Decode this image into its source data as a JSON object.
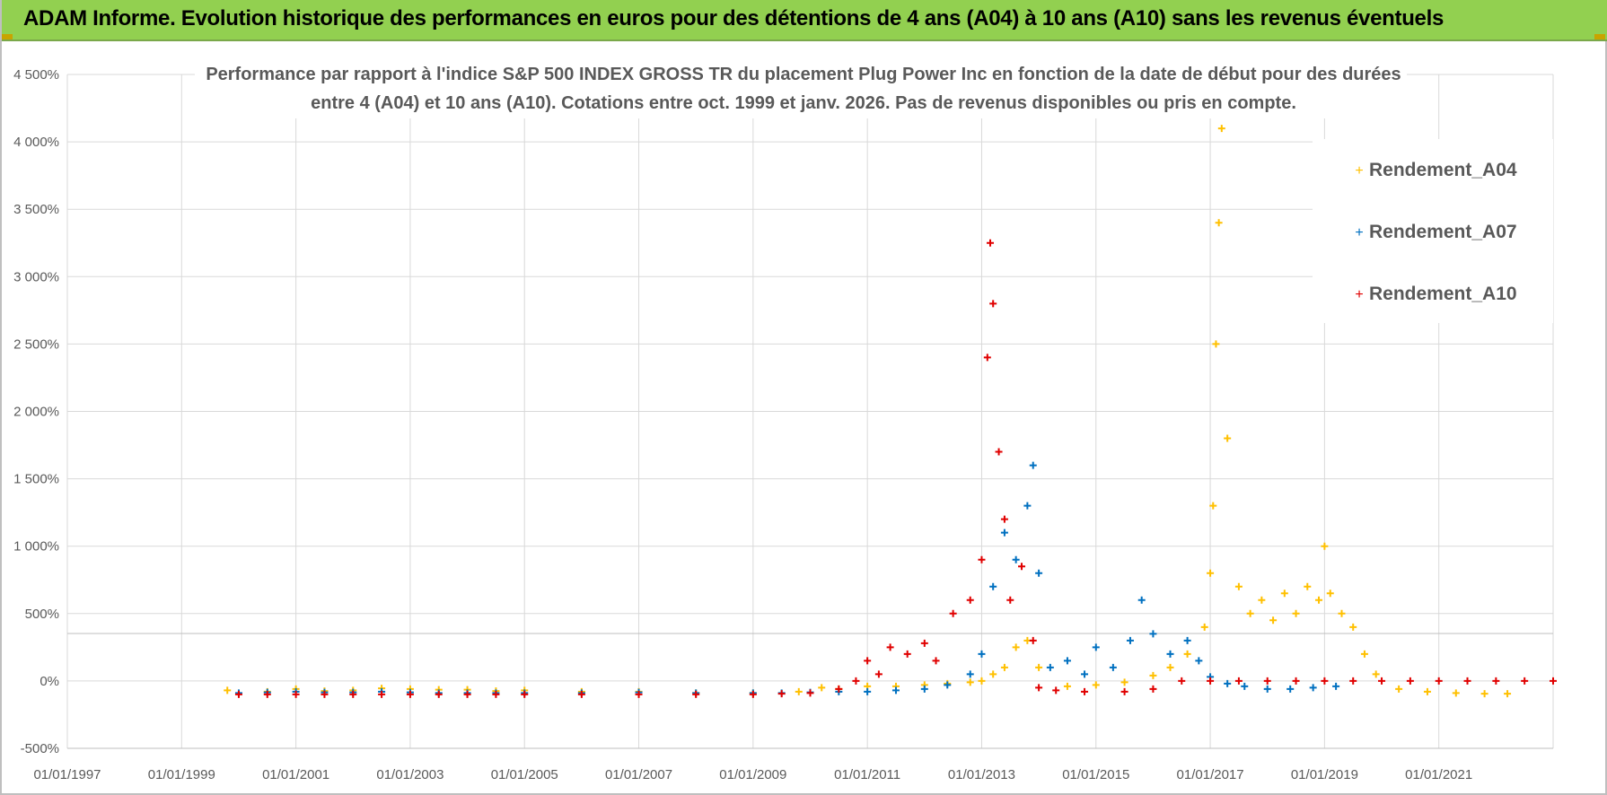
{
  "banner": {
    "title": "ADAM Informe. Evolution historique des performances en euros pour des détentions de 4 ans (A04) à 10 ans (A10) sans les revenus éventuels"
  },
  "colors": {
    "banner_bg": "#92d050",
    "A04": "#ffc000",
    "A07": "#0070c0",
    "A10": "#e00000",
    "grid": "#d9d9d9",
    "text": "#595959"
  },
  "chart_data": {
    "type": "scatter",
    "title_line1": "Performance par rapport à l'indice S&P 500 INDEX GROSS TR  du placement Plug Power Inc en fonction de la date de début pour des durées",
    "title_line2": "entre 4 (A04) et 10 ans (A10). Cotations entre oct. 1999 et janv. 2026. Pas de revenus disponibles ou pris en compte.",
    "xlabel": "",
    "ylabel": "",
    "xlim": [
      1997.0,
      2023.0
    ],
    "ylim": [
      -500,
      4500
    ],
    "y_ticks": [
      -500,
      0,
      500,
      1000,
      1500,
      2000,
      2500,
      3000,
      3500,
      4000,
      4500
    ],
    "y_tick_labels": [
      "-500%",
      "0%",
      "500%",
      "1 000%",
      "1 500%",
      "2 000%",
      "2 500%",
      "3 000%",
      "3 500%",
      "4 000%",
      "4 500%"
    ],
    "x_ticks": [
      1997,
      1999,
      2001,
      2003,
      2005,
      2007,
      2009,
      2011,
      2013,
      2015,
      2017,
      2019,
      2021
    ],
    "x_tick_labels": [
      "01/01/1997",
      "01/01/1999",
      "01/01/2001",
      "01/01/2003",
      "01/01/2005",
      "01/01/2007",
      "01/01/2009",
      "01/01/2011",
      "01/01/2013",
      "01/01/2015",
      "01/01/2017",
      "01/01/2019",
      "01/01/2021"
    ],
    "legend_position": "top-right",
    "series": [
      {
        "name": "Rendement_A04",
        "x": [
          1999.8,
          2000.5,
          2001.0,
          2001.5,
          2002.0,
          2002.5,
          2003.0,
          2003.5,
          2004.0,
          2004.5,
          2005.0,
          2006.0,
          2007.0,
          2008.0,
          2009.0,
          2009.8,
          2010.2,
          2010.5,
          2011.0,
          2011.5,
          2012.0,
          2012.4,
          2012.8,
          2013.0,
          2013.2,
          2013.4,
          2013.6,
          2013.8,
          2014.0,
          2014.5,
          2015.0,
          2015.5,
          2016.0,
          2016.3,
          2016.6,
          2016.9,
          2017.0,
          2017.05,
          2017.1,
          2017.15,
          2017.2,
          2017.3,
          2017.5,
          2017.7,
          2017.9,
          2018.1,
          2018.3,
          2018.5,
          2018.7,
          2018.9,
          2019.0,
          2019.1,
          2019.3,
          2019.5,
          2019.7,
          2019.9,
          2020.3,
          2020.8,
          2021.3,
          2021.8,
          2022.2
        ],
        "y": [
          -70,
          -80,
          -60,
          -75,
          -70,
          -55,
          -60,
          -65,
          -65,
          -75,
          -70,
          -80,
          -80,
          -90,
          -90,
          -80,
          -50,
          -60,
          -40,
          -40,
          -30,
          -20,
          -10,
          0,
          50,
          100,
          250,
          300,
          100,
          -40,
          -30,
          -10,
          40,
          100,
          200,
          400,
          800,
          1300,
          2500,
          3400,
          4100,
          1800,
          700,
          500,
          600,
          450,
          650,
          500,
          700,
          600,
          1000,
          650,
          500,
          400,
          200,
          50,
          -60,
          -80,
          -90,
          -95,
          -95
        ]
      },
      {
        "name": "Rendement_A07",
        "x": [
          2000.0,
          2000.5,
          2001.0,
          2001.5,
          2002.0,
          2002.5,
          2003.0,
          2003.5,
          2004.0,
          2004.5,
          2005.0,
          2006.0,
          2007.0,
          2008.0,
          2009.0,
          2009.5,
          2010.0,
          2010.5,
          2011.0,
          2011.5,
          2012.0,
          2012.4,
          2012.8,
          2013.0,
          2013.2,
          2013.4,
          2013.6,
          2013.8,
          2013.9,
          2014.0,
          2014.2,
          2014.5,
          2014.8,
          2015.0,
          2015.3,
          2015.6,
          2015.8,
          2016.0,
          2016.3,
          2016.6,
          2016.8,
          2017.0,
          2017.3,
          2017.6,
          2018.0,
          2018.4,
          2018.8,
          2019.2
        ],
        "y": [
          -90,
          -85,
          -80,
          -85,
          -85,
          -80,
          -85,
          -90,
          -90,
          -90,
          -90,
          -90,
          -85,
          -90,
          -90,
          -90,
          -85,
          -80,
          -80,
          -70,
          -60,
          -30,
          50,
          200,
          700,
          1100,
          900,
          1300,
          1600,
          800,
          100,
          150,
          50,
          250,
          100,
          300,
          600,
          350,
          200,
          300,
          150,
          30,
          -20,
          -40,
          -60,
          -60,
          -50,
          -40
        ]
      },
      {
        "name": "Rendement_A10",
        "x": [
          2000.0,
          2000.5,
          2001.0,
          2001.5,
          2002.0,
          2002.5,
          2003.0,
          2003.5,
          2004.0,
          2004.5,
          2005.0,
          2006.0,
          2007.0,
          2008.0,
          2009.0,
          2009.5,
          2010.0,
          2010.5,
          2010.8,
          2011.0,
          2011.2,
          2011.4,
          2011.7,
          2012.0,
          2012.2,
          2012.5,
          2012.8,
          2013.0,
          2013.1,
          2013.15,
          2013.2,
          2013.3,
          2013.4,
          2013.5,
          2013.7,
          2013.9,
          2014.0,
          2014.3,
          2014.8,
          2015.5,
          2016.0,
          2016.5,
          2017.0,
          2017.5,
          2018.0,
          2018.5,
          2019.0,
          2019.5,
          2020.0,
          2020.5,
          2021.0,
          2021.5,
          2022.0,
          2022.5,
          2023.0
        ],
        "y": [
          -100,
          -100,
          -100,
          -100,
          -100,
          -100,
          -100,
          -100,
          -100,
          -100,
          -100,
          -100,
          -100,
          -100,
          -100,
          -95,
          -90,
          -60,
          0,
          150,
          50,
          250,
          200,
          280,
          150,
          500,
          600,
          900,
          2400,
          3250,
          2800,
          1700,
          1200,
          600,
          850,
          300,
          -50,
          -70,
          -80,
          -80,
          -60,
          0,
          0,
          0,
          0,
          0,
          0,
          0,
          0,
          0,
          0,
          0,
          0,
          0,
          0
        ]
      }
    ]
  }
}
